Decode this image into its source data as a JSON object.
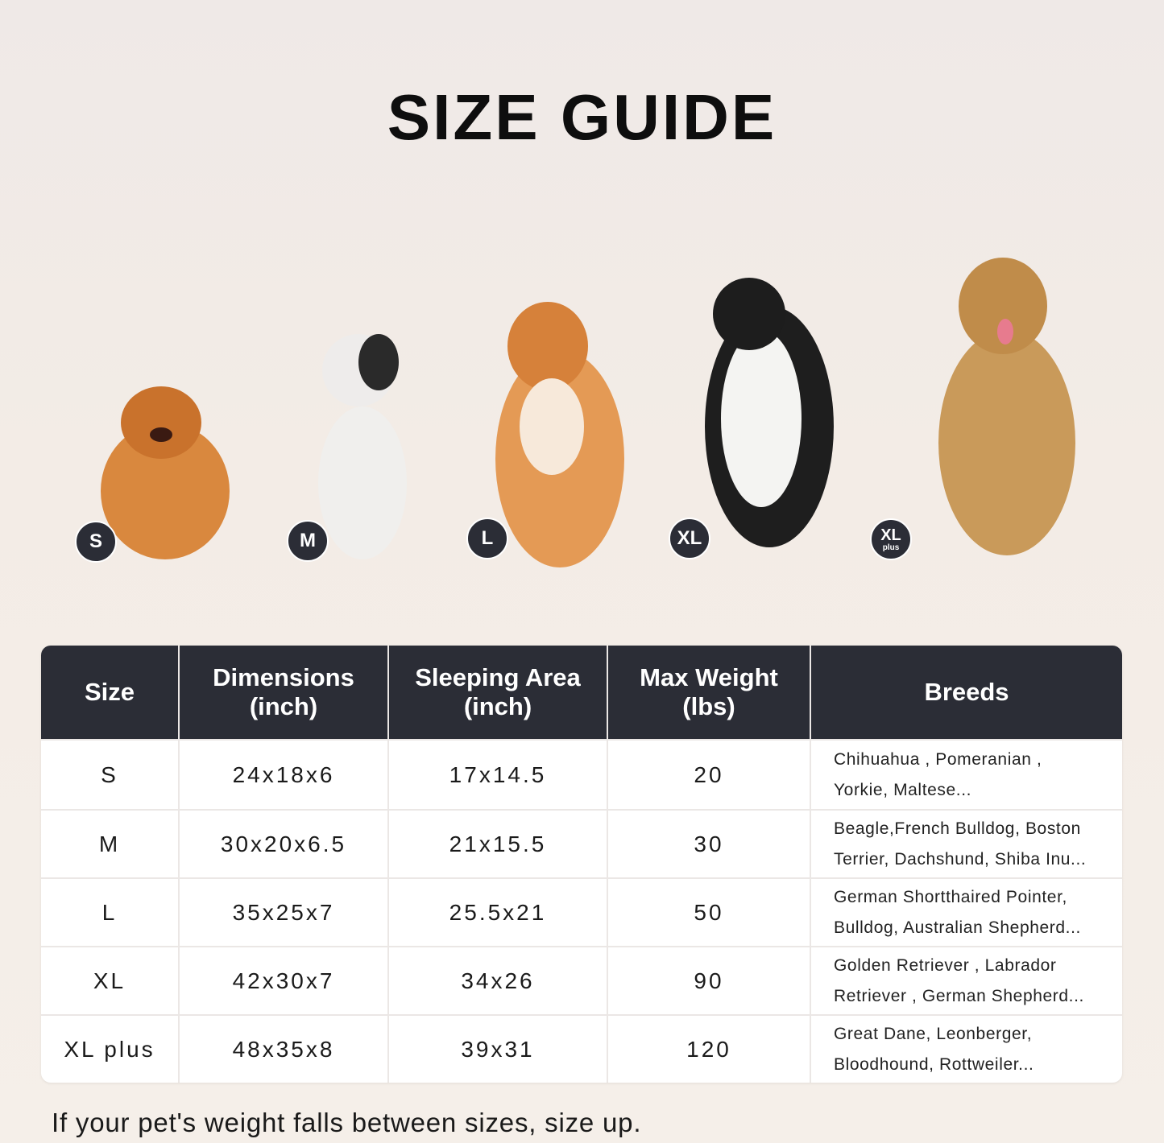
{
  "title": "SIZE GUIDE",
  "badges": [
    {
      "label": "S"
    },
    {
      "label": "M"
    },
    {
      "label": "L"
    },
    {
      "label": "XL"
    },
    {
      "label": "XL",
      "sub": "plus"
    }
  ],
  "table": {
    "headers": [
      "Size",
      "Dimensions\n(inch)",
      "Sleeping Area\n(inch)",
      "Max Weight\n(lbs)",
      "Breeds"
    ],
    "rows": [
      [
        "S",
        "24x18x6",
        "17x14.5",
        "20",
        "Chihuahua , Pomeranian ,\nYorkie, Maltese..."
      ],
      [
        "M",
        "30x20x6.5",
        "21x15.5",
        "30",
        "Beagle,French Bulldog, Boston\nTerrier, Dachshund, Shiba Inu..."
      ],
      [
        "L",
        "35x25x7",
        "25.5x21",
        "50",
        "German Shortthaired Pointer,\nBulldog, Australian Shepherd..."
      ],
      [
        "XL",
        "42x30x7",
        "34x26",
        "90",
        "Golden Retriever , Labrador\nRetriever , German Shepherd..."
      ],
      [
        "XL plus",
        "48x35x8",
        "39x31",
        "120",
        "Great Dane, Leonberger,\nBloodhound, Rottweiler..."
      ]
    ]
  },
  "note": "If your pet's weight falls between sizes, size up.",
  "colors": {
    "header_bg": "#2b2d36",
    "badge_bg": "#2b2d36"
  }
}
